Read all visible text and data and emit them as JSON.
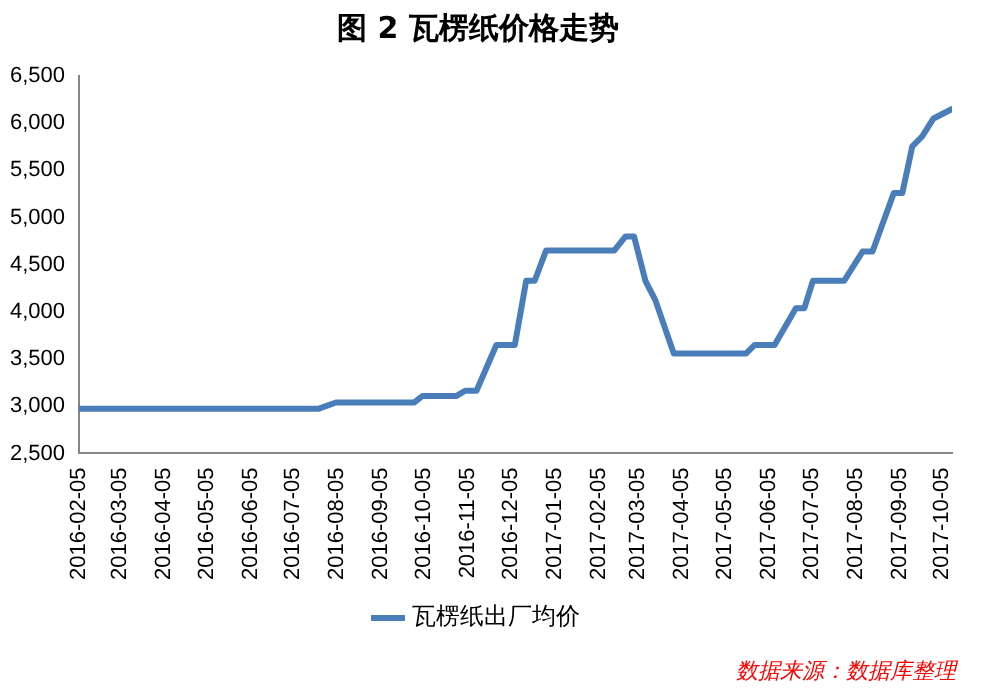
{
  "chart_data": {
    "type": "line",
    "title": "图 2 瓦楞纸价格走势",
    "annotations": [
      "数据来源：数据库整理"
    ],
    "x": [
      "2016-02-05",
      "2016-07-23",
      "2016-08-04",
      "2016-09-28",
      "2016-10-04",
      "2016-10-28",
      "2016-11-03",
      "2016-11-11",
      "2016-11-25",
      "2016-12-08",
      "2016-12-16",
      "2016-12-22",
      "2016-12-30",
      "2017-02-16",
      "2017-02-24",
      "2017-03-02",
      "2017-03-10",
      "2017-03-17",
      "2017-03-30",
      "2017-05-20",
      "2017-05-26",
      "2017-06-09",
      "2017-06-24",
      "2017-06-30",
      "2017-07-06",
      "2017-07-28",
      "2017-08-10",
      "2017-08-17",
      "2017-09-01",
      "2017-09-07",
      "2017-09-14",
      "2017-09-21",
      "2017-09-29",
      "2017-10-12"
    ],
    "series": [
      {
        "name": "瓦楞纸出厂均价",
        "color": "#4a7ebb",
        "values": [
          2975,
          2975,
          3040,
          3040,
          3110,
          3110,
          3165,
          3165,
          3650,
          3650,
          4330,
          4330,
          4650,
          4650,
          4800,
          4800,
          4330,
          4125,
          3560,
          3560,
          3650,
          3650,
          4040,
          4040,
          4330,
          4330,
          4640,
          4640,
          5260,
          5260,
          5755,
          5860,
          6050,
          6150
        ]
      }
    ],
    "xlim": [
      "2016-02-05",
      "2017-10-12"
    ],
    "xticks": [
      "2016-02-05",
      "2016-03-05",
      "2016-04-05",
      "2016-05-05",
      "2016-06-05",
      "2016-07-05",
      "2016-08-05",
      "2016-09-05",
      "2016-10-05",
      "2016-11-05",
      "2016-12-05",
      "2017-01-05",
      "2017-02-05",
      "2017-03-05",
      "2017-04-05",
      "2017-05-05",
      "2017-06-05",
      "2017-07-05",
      "2017-08-05",
      "2017-09-05",
      "2017-10-05"
    ],
    "ylim": [
      2500,
      6500
    ],
    "yticks": [
      {
        "value": 2500,
        "label": "2,500"
      },
      {
        "value": 3000,
        "label": "3,000"
      },
      {
        "value": 3500,
        "label": "3,500"
      },
      {
        "value": 4000,
        "label": "4,000"
      },
      {
        "value": 4500,
        "label": "4,500"
      },
      {
        "value": 5000,
        "label": "5,000"
      },
      {
        "value": 5500,
        "label": "5,500"
      },
      {
        "value": 6000,
        "label": "6,000"
      },
      {
        "value": 6500,
        "label": "6,500"
      }
    ],
    "grid": false,
    "legend": "bottom",
    "marker": "none",
    "line_style": "solid"
  }
}
